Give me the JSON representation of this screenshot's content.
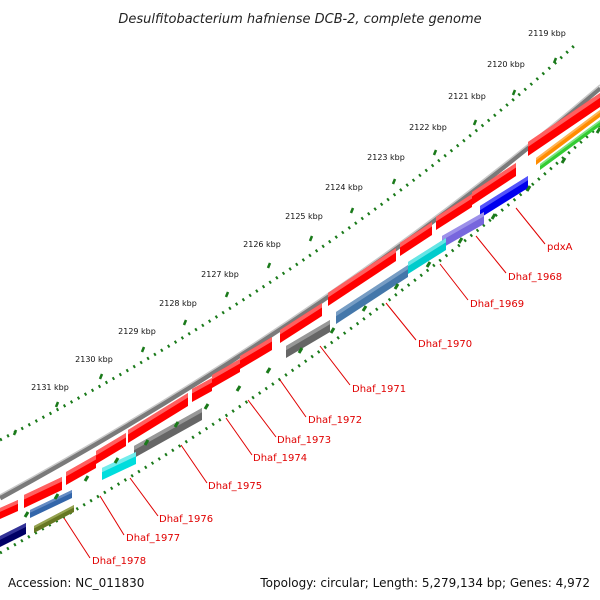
{
  "title": "Desulfitobacterium hafniense DCB-2, complete genome",
  "footer": {
    "accession": "Accession: NC_011830",
    "summary": "Topology: circular; Length: 5,279,134 bp; Genes: 4,972"
  },
  "kbp_labels": [
    "2119 kbp",
    "2120 kbp",
    "2121 kbp",
    "2122 kbp",
    "2123 kbp",
    "2124 kbp",
    "2125 kbp",
    "2126 kbp",
    "2127 kbp",
    "2128 kbp",
    "2129 kbp",
    "2130 kbp",
    "2131 kbp"
  ],
  "gene_labels": [
    "pdxA",
    "Dhaf_1968",
    "Dhaf_1969",
    "Dhaf_1970",
    "Dhaf_1971",
    "Dhaf_1972",
    "Dhaf_1973",
    "Dhaf_1974",
    "Dhaf_1975",
    "Dhaf_1976",
    "Dhaf_1977",
    "Dhaf_1978"
  ],
  "colors": {
    "backbone": "#888888",
    "forward_gene": "#ff0000",
    "tick": "#1a7a1a",
    "label_red": "#e00000"
  }
}
